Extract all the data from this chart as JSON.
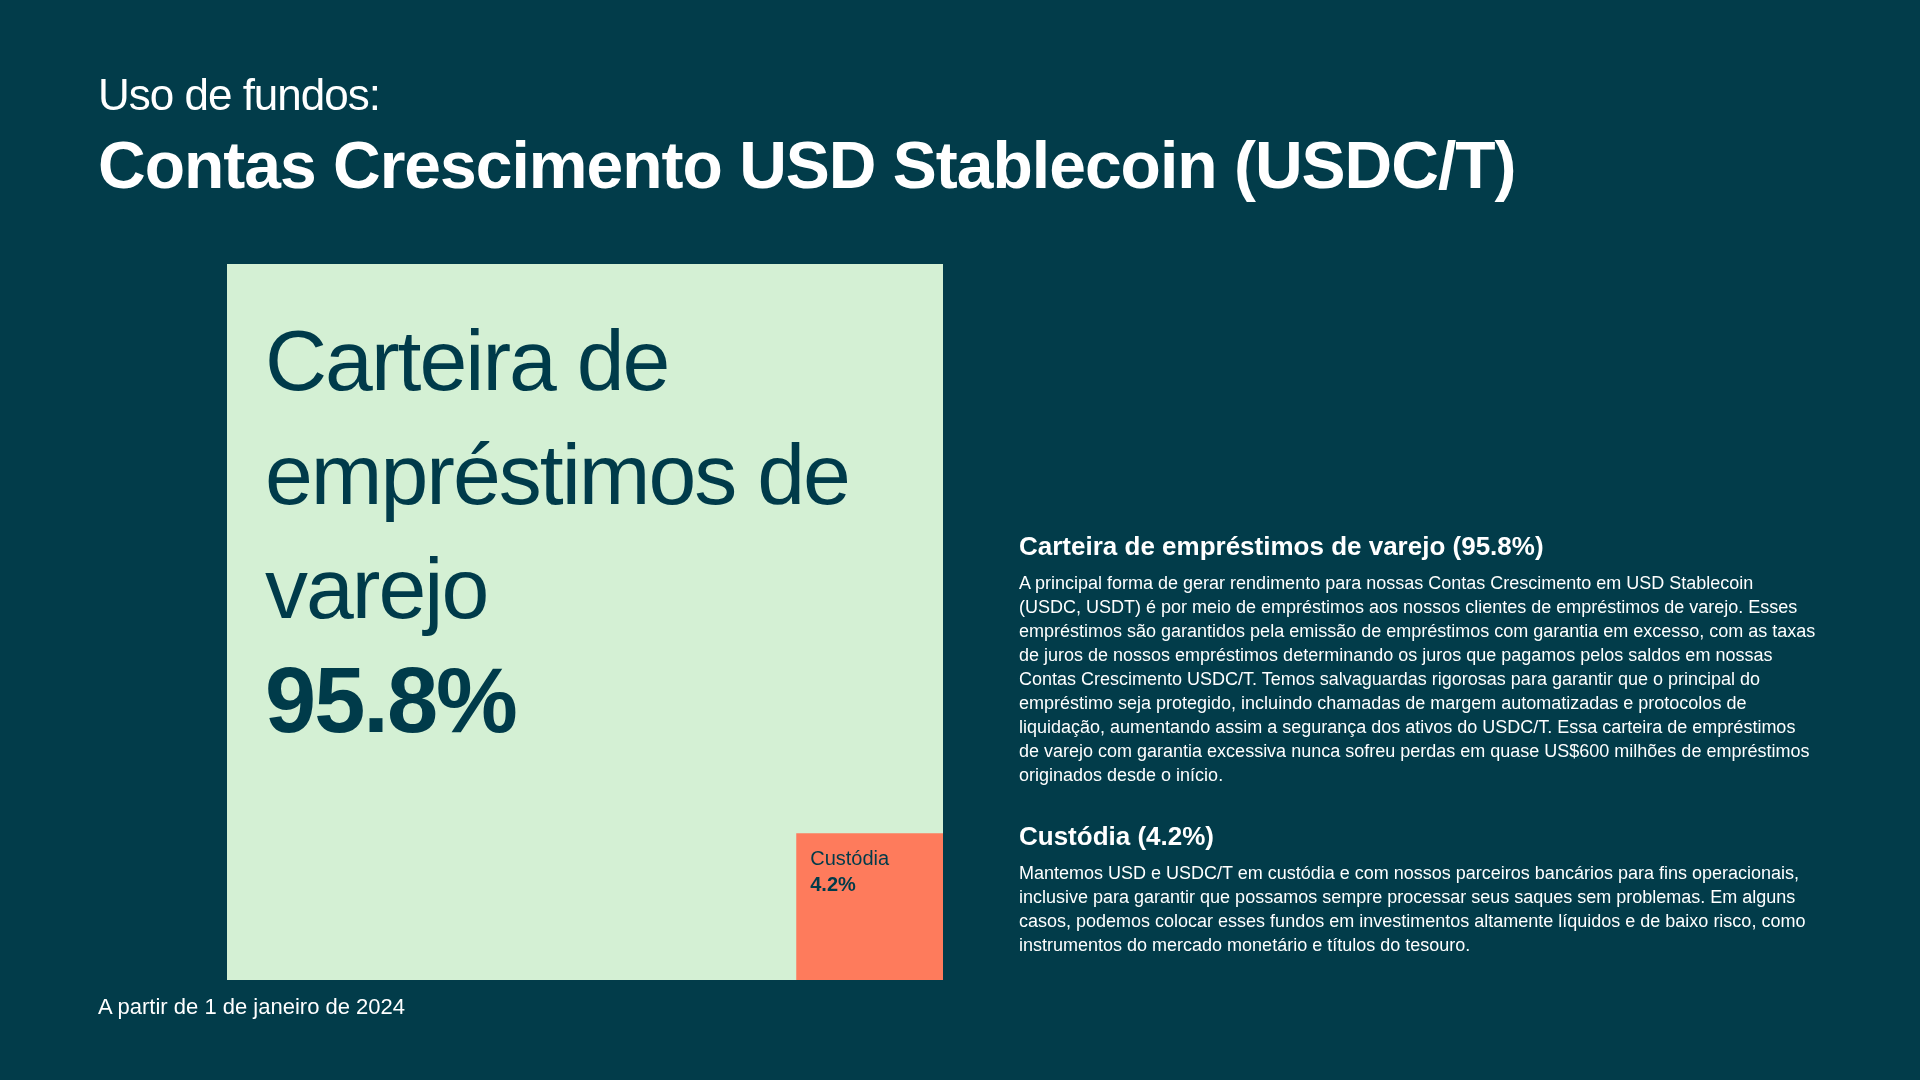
{
  "chart_data": {
    "type": "other",
    "subtitle": "Uso de fundos:",
    "title": "Contas Crescimento USD Stablecoin (USDC/T)",
    "categories": [
      "Carteira de empréstimos de varejo",
      "Custódia"
    ],
    "values": [
      95.8,
      4.2
    ],
    "value_labels": [
      "95.8%",
      "4.2%"
    ],
    "colors": [
      "#d4f0d4",
      "#fe7b5c"
    ],
    "annotations": [
      "Carteira de empréstimos de varejo (95.8%)",
      "A principal forma de gerar rendimento para nossas Contas Crescimento em USD Stablecoin (USDC, USDT) é por meio de empréstimos aos nossos clientes de empréstimos de varejo. Esses empréstimos são garantidos pela emissão de empréstimos com garantia em excesso, com as taxas de juros de nossos empréstimos determinando os juros que pagamos pelos saldos em nossas Contas Crescimento USDC/T. Temos salvaguardas rigorosas para garantir que o principal do empréstimo seja protegido, incluindo chamadas de margem automatizadas e protocolos de liquidação, aumentando assim a segurança dos ativos do USDC/T. Essa carteira de empréstimos de varejo com garantia excessiva nunca sofreu perdas em quase US$600 milhões de empréstimos originados desde o início.",
      "Custódia (4.2%)",
      "Mantemos USD e USDC/T em custódia e com nossos parceiros bancários para fins operacionais, inclusive para garantir que possamos sempre processar seus saques sem problemas. Em alguns casos, podemos colocar esses fundos em investimentos altamente líquidos e de baixo risco, como instrumentos do mercado monetário e títulos do tesouro.",
      "A partir de 1 de janeiro de 2024"
    ]
  }
}
